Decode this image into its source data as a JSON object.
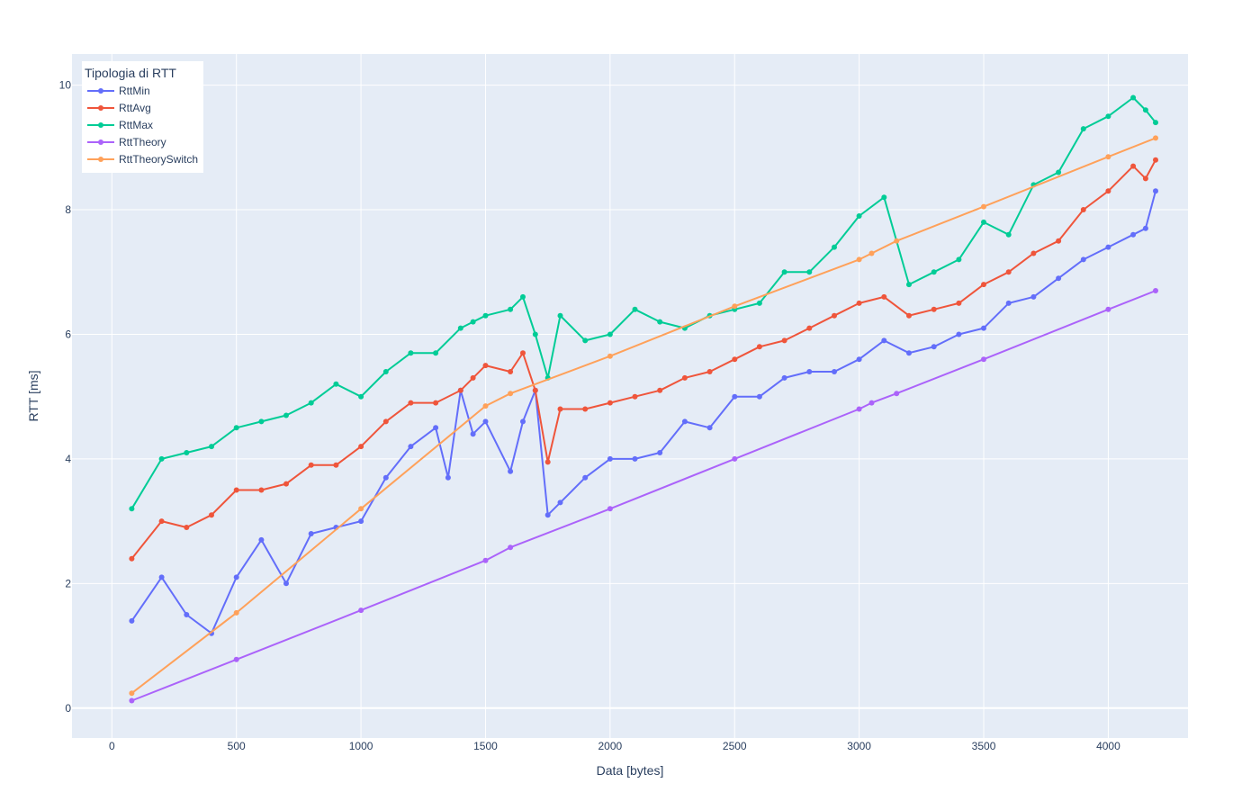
{
  "chart_data": {
    "type": "line",
    "xlabel": "Data [bytes]",
    "ylabel": "RTT [ms]",
    "xlim": [
      -160,
      4320
    ],
    "ylim": [
      -0.48,
      10.5
    ],
    "xticks": [
      0,
      500,
      1000,
      1500,
      2000,
      2500,
      3000,
      3500,
      4000
    ],
    "yticks": [
      0,
      2,
      4,
      6,
      8,
      10
    ],
    "grid": true,
    "legend": {
      "title": "Tipologia di RTT",
      "position": "top-left"
    },
    "series": [
      {
        "name": "RttMin",
        "color": "#636efa",
        "x": [
          80,
          200,
          300,
          400,
          500,
          600,
          700,
          800,
          900,
          1000,
          1100,
          1200,
          1300,
          1350,
          1400,
          1450,
          1500,
          1600,
          1650,
          1700,
          1750,
          1800,
          1900,
          2000,
          2100,
          2200,
          2300,
          2400,
          2500,
          2600,
          2700,
          2800,
          2900,
          3000,
          3100,
          3200,
          3300,
          3400,
          3500,
          3600,
          3700,
          3800,
          3900,
          4000,
          4100,
          4150,
          4190
        ],
        "y": [
          1.4,
          2.1,
          1.5,
          1.2,
          2.1,
          2.7,
          2.0,
          2.8,
          2.9,
          3.0,
          3.7,
          4.2,
          4.5,
          3.7,
          5.1,
          4.4,
          4.6,
          3.8,
          4.6,
          5.1,
          3.1,
          3.3,
          3.7,
          4.0,
          4.0,
          4.1,
          4.6,
          4.5,
          5.0,
          5.0,
          5.3,
          5.4,
          5.4,
          5.6,
          5.9,
          5.7,
          5.8,
          6.0,
          6.1,
          6.5,
          6.6,
          6.9,
          7.2,
          7.4,
          7.6,
          7.7,
          8.3
        ]
      },
      {
        "name": "RttAvg",
        "color": "#ef553b",
        "x": [
          80,
          200,
          300,
          400,
          500,
          600,
          700,
          800,
          900,
          1000,
          1100,
          1200,
          1300,
          1400,
          1450,
          1500,
          1600,
          1650,
          1700,
          1750,
          1800,
          1900,
          2000,
          2100,
          2200,
          2300,
          2400,
          2500,
          2600,
          2700,
          2800,
          2900,
          3000,
          3100,
          3200,
          3300,
          3400,
          3500,
          3600,
          3700,
          3800,
          3900,
          4000,
          4100,
          4150,
          4190
        ],
        "y": [
          2.4,
          3.0,
          2.9,
          3.1,
          3.5,
          3.5,
          3.6,
          3.9,
          3.9,
          4.2,
          4.6,
          4.9,
          4.9,
          5.1,
          5.3,
          5.5,
          5.4,
          5.7,
          5.1,
          3.95,
          4.8,
          4.8,
          4.9,
          5.0,
          5.1,
          5.3,
          5.4,
          5.6,
          5.8,
          5.9,
          6.1,
          6.3,
          6.5,
          6.6,
          6.3,
          6.4,
          6.5,
          6.8,
          7.0,
          7.3,
          7.5,
          8.0,
          8.3,
          8.7,
          8.5,
          8.8
        ]
      },
      {
        "name": "RttMax",
        "color": "#00cc96",
        "x": [
          80,
          200,
          300,
          400,
          500,
          600,
          700,
          800,
          900,
          1000,
          1100,
          1200,
          1300,
          1400,
          1450,
          1500,
          1600,
          1650,
          1700,
          1750,
          1800,
          1900,
          2000,
          2100,
          2200,
          2300,
          2400,
          2500,
          2600,
          2700,
          2800,
          2900,
          3000,
          3100,
          3200,
          3300,
          3400,
          3500,
          3600,
          3700,
          3800,
          3900,
          4000,
          4100,
          4150,
          4190
        ],
        "y": [
          3.2,
          4.0,
          4.1,
          4.2,
          4.5,
          4.6,
          4.7,
          4.9,
          5.2,
          5.0,
          5.4,
          5.7,
          5.7,
          6.1,
          6.2,
          6.3,
          6.4,
          6.6,
          6.0,
          5.3,
          6.3,
          5.9,
          6.0,
          6.4,
          6.2,
          6.1,
          6.3,
          6.4,
          6.5,
          7.0,
          7.0,
          7.4,
          7.9,
          8.2,
          6.8,
          7.0,
          7.2,
          7.8,
          7.6,
          8.4,
          8.6,
          9.3,
          9.5,
          9.8,
          9.6,
          9.4
        ]
      },
      {
        "name": "RttTheory",
        "color": "#ab63fa",
        "x": [
          80,
          500,
          1000,
          1500,
          1600,
          2000,
          2500,
          3000,
          3050,
          3150,
          3500,
          4000,
          4190
        ],
        "y": [
          0.12,
          0.78,
          1.57,
          2.37,
          2.58,
          3.2,
          4.0,
          4.8,
          4.9,
          5.05,
          5.6,
          6.4,
          6.7
        ]
      },
      {
        "name": "RttTheorySwitch",
        "color": "#ffa15a",
        "x": [
          80,
          500,
          1000,
          1500,
          1600,
          2000,
          2500,
          3000,
          3050,
          3150,
          3500,
          4000,
          4190
        ],
        "y": [
          0.24,
          1.53,
          3.2,
          4.85,
          5.05,
          5.65,
          6.45,
          7.2,
          7.3,
          7.5,
          8.05,
          8.85,
          9.15
        ]
      }
    ]
  }
}
